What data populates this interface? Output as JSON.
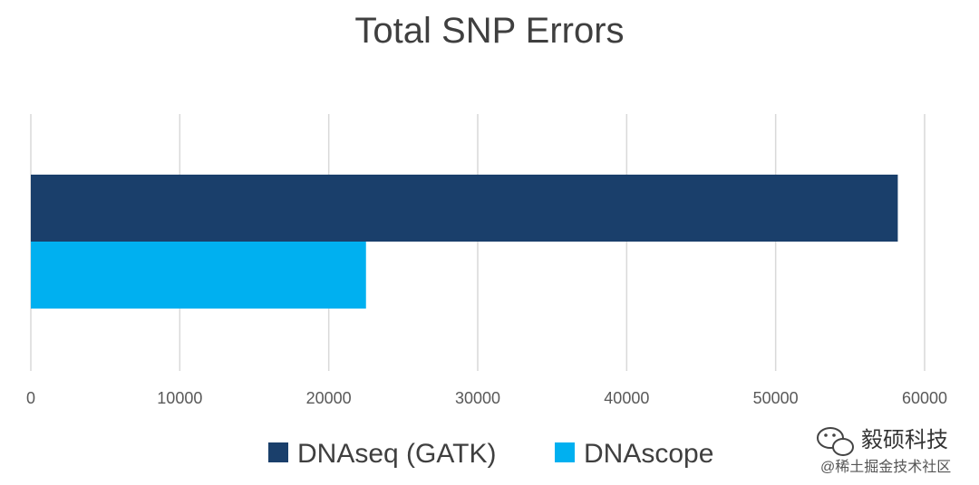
{
  "chart_data": {
    "type": "bar",
    "orientation": "horizontal",
    "title": "Total SNP Errors",
    "xlabel": "",
    "ylabel": "",
    "xlim": [
      0,
      60000
    ],
    "xticks": [
      "0",
      "10000",
      "20000",
      "30000",
      "40000",
      "50000",
      "60000"
    ],
    "grid": true,
    "legend_position": "bottom",
    "series": [
      {
        "name": "DNAseq (GATK)",
        "value": 58200,
        "color": "#1a3f6b"
      },
      {
        "name": "DNAscope",
        "value": 22500,
        "color": "#00b0f0"
      }
    ]
  },
  "watermark": {
    "brand": "毅硕科技",
    "sub": "@稀土掘金技术社区",
    "icon": "wechat-icon"
  }
}
